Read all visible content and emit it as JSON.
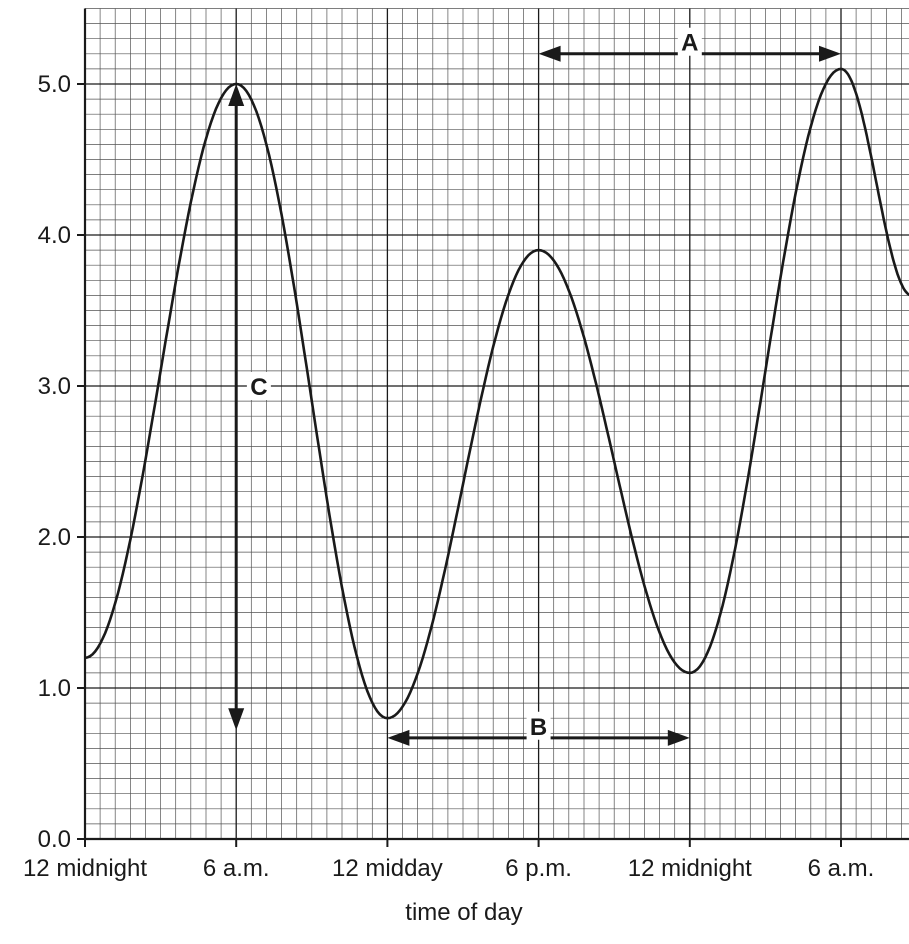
{
  "chart_data": {
    "type": "line",
    "title": "",
    "xlabel": "time of day",
    "ylabel": "",
    "x_unit": "hours",
    "x_ticks": [
      {
        "x": 0,
        "label": "12 midnight"
      },
      {
        "x": 6,
        "label": "6 a.m."
      },
      {
        "x": 12,
        "label": "12 midday"
      },
      {
        "x": 18,
        "label": "6 p.m."
      },
      {
        "x": 24,
        "label": "12 midnight"
      },
      {
        "x": 30,
        "label": "6 a.m."
      }
    ],
    "y_ticks": [
      {
        "y": 0.0,
        "label": "0.0"
      },
      {
        "y": 1.0,
        "label": "1.0"
      },
      {
        "y": 2.0,
        "label": "2.0"
      },
      {
        "y": 3.0,
        "label": "3.0"
      },
      {
        "y": 4.0,
        "label": "4.0"
      },
      {
        "y": 5.0,
        "label": "5.0"
      }
    ],
    "xlim": [
      0,
      32.8
    ],
    "ylim": [
      0,
      5.5
    ],
    "grid": true,
    "series": [
      {
        "x": [
          0,
          6,
          12,
          18,
          24,
          30,
          32.8
        ],
        "y": [
          1.2,
          5.0,
          0.8,
          3.9,
          1.1,
          5.1,
          3.6
        ]
      }
    ],
    "annotations": [
      {
        "label": "A",
        "kind": "horizontal-arrow",
        "x_start": 18,
        "x_end": 30,
        "y": 5.2,
        "label_x": 24,
        "label_y": 5.28
      },
      {
        "label": "B",
        "kind": "horizontal-arrow",
        "x_start": 12,
        "x_end": 24,
        "y": 0.67,
        "label_x": 18,
        "label_y": 0.75
      },
      {
        "label": "C",
        "kind": "vertical-arrow",
        "x": 6,
        "y_start": 0.8,
        "y_end": 5.0,
        "label_x": 6.9,
        "label_y": 3.0
      }
    ],
    "colors": {
      "line": "#1a1a1a",
      "grid_major": "#1a1a1a",
      "grid_minor": "#1a1a1a"
    }
  }
}
